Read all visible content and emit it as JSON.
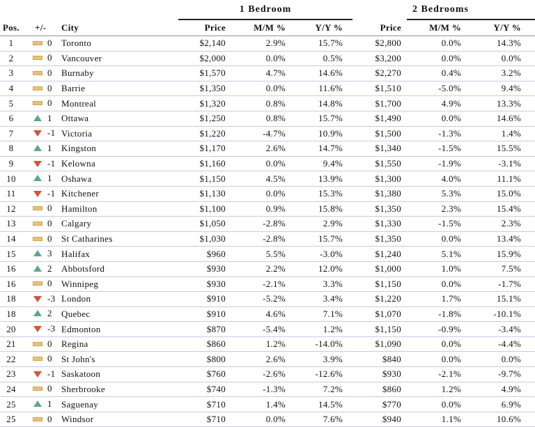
{
  "groups": {
    "one_bedroom": "1 Bedroom",
    "two_bedrooms": "2 Bedrooms"
  },
  "headers": {
    "pos": "Pos.",
    "change": "+/-",
    "city": "City",
    "price1": "Price",
    "mm1": "M/M %",
    "yy1": "Y/Y %",
    "price2": "Price",
    "mm2": "M/M %",
    "yy2": "Y/Y %"
  },
  "colors": {
    "up": "#5ba78f",
    "down": "#d2553b",
    "flat": "#e9c27d",
    "rule": "#c8cbe2"
  },
  "rows": [
    {
      "pos": "1",
      "dir": "flat",
      "chg": "0",
      "city": "Toronto",
      "p1": "$2,140",
      "mm1": "2.9%",
      "yy1": "15.7%",
      "p2": "$2,800",
      "mm2": "0.0%",
      "yy2": "14.3%"
    },
    {
      "pos": "2",
      "dir": "flat",
      "chg": "0",
      "city": "Vancouver",
      "p1": "$2,000",
      "mm1": "0.0%",
      "yy1": "0.5%",
      "p2": "$3,200",
      "mm2": "0.0%",
      "yy2": "0.0%"
    },
    {
      "pos": "3",
      "dir": "flat",
      "chg": "0",
      "city": "Burnaby",
      "p1": "$1,570",
      "mm1": "4.7%",
      "yy1": "14.6%",
      "p2": "$2,270",
      "mm2": "0.4%",
      "yy2": "3.2%"
    },
    {
      "pos": "4",
      "dir": "flat",
      "chg": "0",
      "city": "Barrie",
      "p1": "$1,350",
      "mm1": "0.0%",
      "yy1": "11.6%",
      "p2": "$1,510",
      "mm2": "-5.0%",
      "yy2": "9.4%"
    },
    {
      "pos": "5",
      "dir": "flat",
      "chg": "0",
      "city": "Montreal",
      "p1": "$1,320",
      "mm1": "0.8%",
      "yy1": "14.8%",
      "p2": "$1,700",
      "mm2": "4.9%",
      "yy2": "13.3%"
    },
    {
      "pos": "6",
      "dir": "up",
      "chg": "1",
      "city": "Ottawa",
      "p1": "$1,250",
      "mm1": "0.8%",
      "yy1": "15.7%",
      "p2": "$1,490",
      "mm2": "0.0%",
      "yy2": "14.6%"
    },
    {
      "pos": "7",
      "dir": "down",
      "chg": "-1",
      "city": "Victoria",
      "p1": "$1,220",
      "mm1": "-4.7%",
      "yy1": "10.9%",
      "p2": "$1,500",
      "mm2": "-1.3%",
      "yy2": "1.4%"
    },
    {
      "pos": "8",
      "dir": "up",
      "chg": "1",
      "city": "Kingston",
      "p1": "$1,170",
      "mm1": "2.6%",
      "yy1": "14.7%",
      "p2": "$1,340",
      "mm2": "-1.5%",
      "yy2": "15.5%"
    },
    {
      "pos": "9",
      "dir": "down",
      "chg": "-1",
      "city": "Kelowna",
      "p1": "$1,160",
      "mm1": "0.0%",
      "yy1": "9.4%",
      "p2": "$1,550",
      "mm2": "-1.9%",
      "yy2": "-3.1%"
    },
    {
      "pos": "10",
      "dir": "up",
      "chg": "1",
      "city": "Oshawa",
      "p1": "$1,150",
      "mm1": "4.5%",
      "yy1": "13.9%",
      "p2": "$1,300",
      "mm2": "4.0%",
      "yy2": "11.1%"
    },
    {
      "pos": "11",
      "dir": "down",
      "chg": "-1",
      "city": "Kitchener",
      "p1": "$1,130",
      "mm1": "0.0%",
      "yy1": "15.3%",
      "p2": "$1,380",
      "mm2": "5.3%",
      "yy2": "15.0%"
    },
    {
      "pos": "12",
      "dir": "flat",
      "chg": "0",
      "city": "Hamilton",
      "p1": "$1,100",
      "mm1": "0.9%",
      "yy1": "15.8%",
      "p2": "$1,350",
      "mm2": "2.3%",
      "yy2": "15.4%"
    },
    {
      "pos": "13",
      "dir": "flat",
      "chg": "0",
      "city": "Calgary",
      "p1": "$1,050",
      "mm1": "-2.8%",
      "yy1": "2.9%",
      "p2": "$1,330",
      "mm2": "-1.5%",
      "yy2": "2.3%"
    },
    {
      "pos": "14",
      "dir": "flat",
      "chg": "0",
      "city": "St Catharines",
      "p1": "$1,030",
      "mm1": "-2.8%",
      "yy1": "15.7%",
      "p2": "$1,350",
      "mm2": "0.0%",
      "yy2": "13.4%"
    },
    {
      "pos": "15",
      "dir": "up",
      "chg": "3",
      "city": "Halifax",
      "p1": "$960",
      "mm1": "5.5%",
      "yy1": "-3.0%",
      "p2": "$1,240",
      "mm2": "5.1%",
      "yy2": "15.9%"
    },
    {
      "pos": "16",
      "dir": "up",
      "chg": "2",
      "city": "Abbotsford",
      "p1": "$930",
      "mm1": "2.2%",
      "yy1": "12.0%",
      "p2": "$1,000",
      "mm2": "1.0%",
      "yy2": "7.5%"
    },
    {
      "pos": "16",
      "dir": "flat",
      "chg": "0",
      "city": "Winnipeg",
      "p1": "$930",
      "mm1": "-2.1%",
      "yy1": "3.3%",
      "p2": "$1,150",
      "mm2": "0.0%",
      "yy2": "-1.7%"
    },
    {
      "pos": "18",
      "dir": "down",
      "chg": "-3",
      "city": "London",
      "p1": "$910",
      "mm1": "-5.2%",
      "yy1": "3.4%",
      "p2": "$1,220",
      "mm2": "1.7%",
      "yy2": "15.1%"
    },
    {
      "pos": "18",
      "dir": "up",
      "chg": "2",
      "city": "Quebec",
      "p1": "$910",
      "mm1": "4.6%",
      "yy1": "7.1%",
      "p2": "$1,070",
      "mm2": "-1.8%",
      "yy2": "-10.1%"
    },
    {
      "pos": "20",
      "dir": "down",
      "chg": "-3",
      "city": "Edmonton",
      "p1": "$870",
      "mm1": "-5.4%",
      "yy1": "1.2%",
      "p2": "$1,150",
      "mm2": "-0.9%",
      "yy2": "-3.4%"
    },
    {
      "pos": "21",
      "dir": "flat",
      "chg": "0",
      "city": "Regina",
      "p1": "$860",
      "mm1": "1.2%",
      "yy1": "-14.0%",
      "p2": "$1,090",
      "mm2": "0.0%",
      "yy2": "-4.4%"
    },
    {
      "pos": "22",
      "dir": "flat",
      "chg": "0",
      "city": "St John's",
      "p1": "$800",
      "mm1": "2.6%",
      "yy1": "3.9%",
      "p2": "$840",
      "mm2": "0.0%",
      "yy2": "0.0%"
    },
    {
      "pos": "23",
      "dir": "down",
      "chg": "-1",
      "city": "Saskatoon",
      "p1": "$760",
      "mm1": "-2.6%",
      "yy1": "-12.6%",
      "p2": "$930",
      "mm2": "-2.1%",
      "yy2": "-9.7%"
    },
    {
      "pos": "24",
      "dir": "flat",
      "chg": "0",
      "city": "Sherbrooke",
      "p1": "$740",
      "mm1": "-1.3%",
      "yy1": "7.2%",
      "p2": "$860",
      "mm2": "1.2%",
      "yy2": "4.9%"
    },
    {
      "pos": "25",
      "dir": "up",
      "chg": "1",
      "city": "Saguenay",
      "p1": "$710",
      "mm1": "1.4%",
      "yy1": "14.5%",
      "p2": "$770",
      "mm2": "0.0%",
      "yy2": "6.9%"
    },
    {
      "pos": "25",
      "dir": "flat",
      "chg": "0",
      "city": "Windsor",
      "p1": "$710",
      "mm1": "0.0%",
      "yy1": "7.6%",
      "p2": "$940",
      "mm2": "1.1%",
      "yy2": "10.6%"
    }
  ]
}
